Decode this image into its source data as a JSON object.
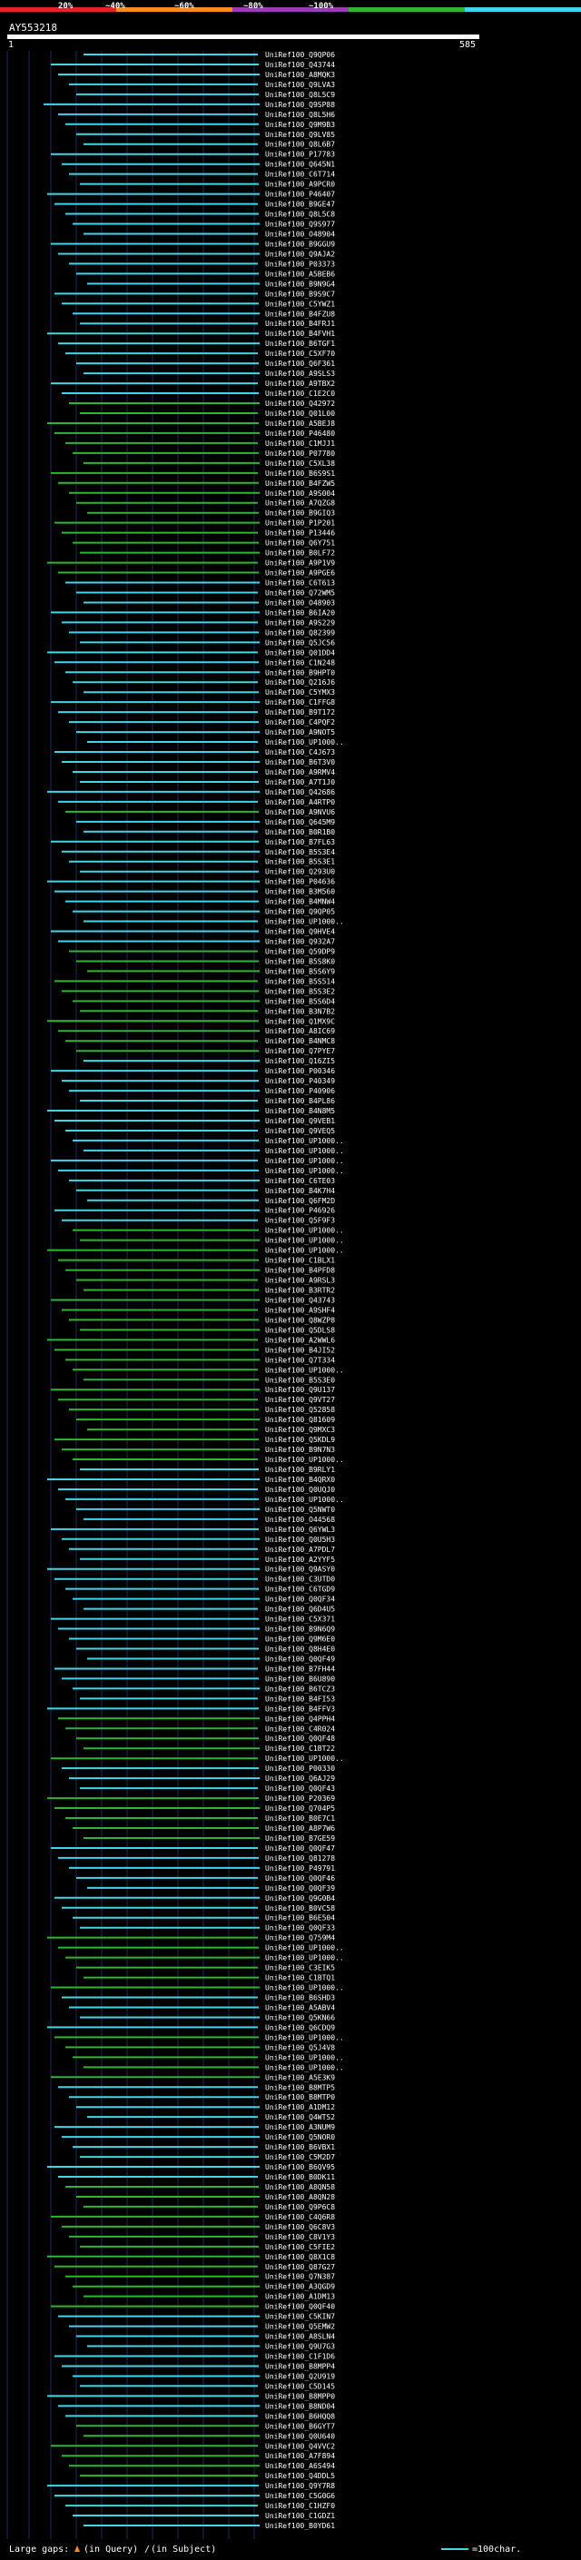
{
  "legend": {
    "labels": [
      "20%",
      "~40%",
      "~60%",
      "~80%",
      "~100%"
    ],
    "colors": [
      "#e8202a",
      "#ff8a1e",
      "#9b3db8",
      "#2fb52f",
      "#3fd6e8"
    ]
  },
  "query": {
    "id": "AY553218",
    "start_label": "1",
    "end_label": "585"
  },
  "footer": {
    "gaps_label": "Large gaps:",
    "query_gap_text": "(in Query)",
    "subject_gap_text": "(in Subject)",
    "scale_text": "=100char."
  },
  "colors": {
    "background": "#000000",
    "grid": "#1e2a55",
    "cyan": "#3fd6e8",
    "green": "#2fb52f",
    "text": "#ffffff"
  },
  "hits": [
    {
      "label": "UniRef100_Q9QP06",
      "tint": "cyan"
    },
    {
      "label": "UniRef100_Q43744",
      "tint": "cyan"
    },
    {
      "label": "UniRef100_A8MQK3",
      "tint": "cyan"
    },
    {
      "label": "UniRef100_Q9LVA3",
      "tint": "cyan"
    },
    {
      "label": "UniRef100_Q8L5C9",
      "tint": "cyan"
    },
    {
      "label": "UniRef100_Q9SP88",
      "tint": "cyan"
    },
    {
      "label": "UniRef100_Q8L5H6",
      "tint": "cyan"
    },
    {
      "label": "UniRef100_Q9M9B3",
      "tint": "cyan"
    },
    {
      "label": "UniRef100_Q9LV85",
      "tint": "cyan"
    },
    {
      "label": "UniRef100_Q8L6B7",
      "tint": "cyan"
    },
    {
      "label": "UniRef100_P17783",
      "tint": "cyan"
    },
    {
      "label": "UniRef100_Q645N1",
      "tint": "cyan"
    },
    {
      "label": "UniRef100_C6T714",
      "tint": "cyan"
    },
    {
      "label": "UniRef100_A9PCR0",
      "tint": "cyan"
    },
    {
      "label": "UniRef100_P46407",
      "tint": "cyan"
    },
    {
      "label": "UniRef100_B9GE47",
      "tint": "cyan"
    },
    {
      "label": "UniRef100_Q8L5C8",
      "tint": "cyan"
    },
    {
      "label": "UniRef100_Q9S977",
      "tint": "cyan"
    },
    {
      "label": "UniRef100_O48904",
      "tint": "cyan"
    },
    {
      "label": "UniRef100_B9GGU9",
      "tint": "cyan"
    },
    {
      "label": "UniRef100_Q9AJA2",
      "tint": "cyan"
    },
    {
      "label": "UniRef100_P03373",
      "tint": "cyan"
    },
    {
      "label": "UniRef100_A5BEB6",
      "tint": "cyan"
    },
    {
      "label": "UniRef100_B9N9G4",
      "tint": "cyan"
    },
    {
      "label": "UniRef100_B9S9C7",
      "tint": "cyan"
    },
    {
      "label": "UniRef100_C5YWZ1",
      "tint": "cyan"
    },
    {
      "label": "UniRef100_B4FZU8",
      "tint": "cyan"
    },
    {
      "label": "UniRef100_B4FRJ1",
      "tint": "cyan"
    },
    {
      "label": "UniRef100_B4FVH1",
      "tint": "cyan"
    },
    {
      "label": "UniRef100_B6TGF1",
      "tint": "cyan"
    },
    {
      "label": "UniRef100_C5XF70",
      "tint": "cyan"
    },
    {
      "label": "UniRef100_Q6F361",
      "tint": "cyan"
    },
    {
      "label": "UniRef100_A9SLS3",
      "tint": "cyan"
    },
    {
      "label": "UniRef100_A9TBX2",
      "tint": "cyan"
    },
    {
      "label": "UniRef100_C1E2C0",
      "tint": "cyan"
    },
    {
      "label": "UniRef100_Q42972",
      "tint": "green"
    },
    {
      "label": "UniRef100_Q01L00",
      "tint": "green"
    },
    {
      "label": "UniRef100_A5BEJ8",
      "tint": "green"
    },
    {
      "label": "UniRef100_P46480",
      "tint": "green"
    },
    {
      "label": "UniRef100_C1MJJ1",
      "tint": "green"
    },
    {
      "label": "UniRef100_P07780",
      "tint": "green"
    },
    {
      "label": "UniRef100_C5XL38",
      "tint": "green"
    },
    {
      "label": "UniRef100_B6S9S1",
      "tint": "green"
    },
    {
      "label": "UniRef100_B4FZW5",
      "tint": "green"
    },
    {
      "label": "UniRef100_A9S004",
      "tint": "green"
    },
    {
      "label": "UniRef100_A7QZG8",
      "tint": "green"
    },
    {
      "label": "UniRef100_B9GIQ3",
      "tint": "green"
    },
    {
      "label": "UniRef100_P1P201",
      "tint": "green"
    },
    {
      "label": "UniRef100_P13446",
      "tint": "green"
    },
    {
      "label": "UniRef100_Q6Y751",
      "tint": "green"
    },
    {
      "label": "UniRef100_B0LF72",
      "tint": "green"
    },
    {
      "label": "UniRef100_A9P1V9",
      "tint": "green"
    },
    {
      "label": "UniRef100_A9PGE6",
      "tint": "green"
    },
    {
      "label": "UniRef100_C6T613",
      "tint": "cyan"
    },
    {
      "label": "UniRef100_Q72WM5",
      "tint": "cyan"
    },
    {
      "label": "UniRef100_O48903",
      "tint": "cyan"
    },
    {
      "label": "UniRef100_B6IA20",
      "tint": "cyan"
    },
    {
      "label": "UniRef100_A9S229",
      "tint": "cyan"
    },
    {
      "label": "UniRef100_Q82399",
      "tint": "cyan"
    },
    {
      "label": "UniRef100_Q5JC56",
      "tint": "cyan"
    },
    {
      "label": "UniRef100_Q01DD4",
      "tint": "cyan"
    },
    {
      "label": "UniRef100_C1N248",
      "tint": "cyan"
    },
    {
      "label": "UniRef100_B9HPT0",
      "tint": "cyan"
    },
    {
      "label": "UniRef100_Q216J6",
      "tint": "cyan"
    },
    {
      "label": "UniRef100_C5YMX3",
      "tint": "cyan"
    },
    {
      "label": "UniRef100_C1FFG8",
      "tint": "cyan"
    },
    {
      "label": "UniRef100_B9T172",
      "tint": "cyan"
    },
    {
      "label": "UniRef100_C4PQF2",
      "tint": "cyan"
    },
    {
      "label": "UniRef100_A9NOT5",
      "tint": "cyan"
    },
    {
      "label": "UniRef100_UP1000..",
      "tint": "cyan"
    },
    {
      "label": "UniRef100_C4J673",
      "tint": "cyan"
    },
    {
      "label": "UniRef100_B6T3V0",
      "tint": "cyan"
    },
    {
      "label": "UniRef100_A9RMV4",
      "tint": "cyan"
    },
    {
      "label": "UniRef100_A7T1J0",
      "tint": "cyan"
    },
    {
      "label": "UniRef100_Q42686",
      "tint": "cyan"
    },
    {
      "label": "UniRef100_A4RTP0",
      "tint": "cyan"
    },
    {
      "label": "UniRef100_A9NVU6",
      "tint": "green"
    },
    {
      "label": "UniRef100_Q645M9",
      "tint": "cyan"
    },
    {
      "label": "UniRef100_B0R1B0",
      "tint": "cyan"
    },
    {
      "label": "UniRef100_B7FL63",
      "tint": "cyan"
    },
    {
      "label": "UniRef100_B5S3E4",
      "tint": "cyan"
    },
    {
      "label": "UniRef100_B5S3E1",
      "tint": "cyan"
    },
    {
      "label": "UniRef100_Q293U0",
      "tint": "cyan"
    },
    {
      "label": "UniRef100_P04636",
      "tint": "cyan"
    },
    {
      "label": "UniRef100_B3M560",
      "tint": "cyan"
    },
    {
      "label": "UniRef100_B4MNW4",
      "tint": "cyan"
    },
    {
      "label": "UniRef100_Q9QP05",
      "tint": "cyan"
    },
    {
      "label": "UniRef100_UP1000..",
      "tint": "cyan"
    },
    {
      "label": "UniRef100_Q9HVE4",
      "tint": "cyan"
    },
    {
      "label": "UniRef100_Q932A7",
      "tint": "cyan"
    },
    {
      "label": "UniRef100_Q59DP9",
      "tint": "green"
    },
    {
      "label": "UniRef100_B5S8K0",
      "tint": "green"
    },
    {
      "label": "UniRef100_B5S6Y9",
      "tint": "green"
    },
    {
      "label": "UniRef100_B5S514",
      "tint": "green"
    },
    {
      "label": "UniRef100_B5S3E2",
      "tint": "green"
    },
    {
      "label": "UniRef100_B5S6D4",
      "tint": "green"
    },
    {
      "label": "UniRef100_B3N7B2",
      "tint": "green"
    },
    {
      "label": "UniRef100_Q1MX9C",
      "tint": "green"
    },
    {
      "label": "UniRef100_A8IC69",
      "tint": "green"
    },
    {
      "label": "UniRef100_B4NMC8",
      "tint": "green"
    },
    {
      "label": "UniRef100_Q7PYE7",
      "tint": "green"
    },
    {
      "label": "UniRef100_Q16ZI5",
      "tint": "cyan"
    },
    {
      "label": "UniRef100_P00346",
      "tint": "cyan"
    },
    {
      "label": "UniRef100_P40349",
      "tint": "cyan"
    },
    {
      "label": "UniRef100_P40906",
      "tint": "cyan"
    },
    {
      "label": "UniRef100_B4PL86",
      "tint": "cyan"
    },
    {
      "label": "UniRef100_B4N8M5",
      "tint": "cyan"
    },
    {
      "label": "UniRef100_Q9VEB1",
      "tint": "cyan"
    },
    {
      "label": "UniRef100_Q9VEQ5",
      "tint": "cyan"
    },
    {
      "label": "UniRef100_UP1000..",
      "tint": "cyan"
    },
    {
      "label": "UniRef100_UP1000..",
      "tint": "cyan"
    },
    {
      "label": "UniRef100_UP1000..",
      "tint": "cyan"
    },
    {
      "label": "UniRef100_UP1000..",
      "tint": "cyan"
    },
    {
      "label": "UniRef100_C6TE03",
      "tint": "cyan"
    },
    {
      "label": "UniRef100_B4K7H4",
      "tint": "cyan"
    },
    {
      "label": "UniRef100_Q6FM2D",
      "tint": "cyan"
    },
    {
      "label": "UniRef100_P46926",
      "tint": "cyan"
    },
    {
      "label": "UniRef100_Q5F9F3",
      "tint": "cyan"
    },
    {
      "label": "UniRef100_UP1000..",
      "tint": "green"
    },
    {
      "label": "UniRef100_UP1000..",
      "tint": "green"
    },
    {
      "label": "UniRef100_UP1000..",
      "tint": "green"
    },
    {
      "label": "UniRef100_C1BLX1",
      "tint": "green"
    },
    {
      "label": "UniRef100_B4PFD8",
      "tint": "green"
    },
    {
      "label": "UniRef100_A9RSL3",
      "tint": "green"
    },
    {
      "label": "UniRef100_B3RTR2",
      "tint": "green"
    },
    {
      "label": "UniRef100_Q43743",
      "tint": "green"
    },
    {
      "label": "UniRef100_A9SHF4",
      "tint": "green"
    },
    {
      "label": "UniRef100_Q8WZP8",
      "tint": "green"
    },
    {
      "label": "UniRef100_Q5DLS8",
      "tint": "green"
    },
    {
      "label": "UniRef100_A2WWL6",
      "tint": "green"
    },
    {
      "label": "UniRef100_B4JI52",
      "tint": "green"
    },
    {
      "label": "UniRef100_Q7T334",
      "tint": "green"
    },
    {
      "label": "UniRef100_UP1000..",
      "tint": "green"
    },
    {
      "label": "UniRef100_B5S3E0",
      "tint": "green"
    },
    {
      "label": "UniRef100_Q9U137",
      "tint": "green"
    },
    {
      "label": "UniRef100_Q9VT27",
      "tint": "green"
    },
    {
      "label": "UniRef100_Q52858",
      "tint": "green"
    },
    {
      "label": "UniRef100_Q81609",
      "tint": "green"
    },
    {
      "label": "UniRef100_Q9MXC3",
      "tint": "green"
    },
    {
      "label": "UniRef100_Q5KDL9",
      "tint": "green"
    },
    {
      "label": "UniRef100_B9N7N3",
      "tint": "green"
    },
    {
      "label": "UniRef100_UP1000..",
      "tint": "green"
    },
    {
      "label": "UniRef100_B9RLY1",
      "tint": "cyan"
    },
    {
      "label": "UniRef100_B4QRX0",
      "tint": "cyan"
    },
    {
      "label": "UniRef100_Q0UQJ0",
      "tint": "cyan"
    },
    {
      "label": "UniRef100_UP1000..",
      "tint": "cyan"
    },
    {
      "label": "UniRef100_Q5NWT0",
      "tint": "cyan"
    },
    {
      "label": "UniRef100_O44568",
      "tint": "cyan"
    },
    {
      "label": "UniRef100_Q6YWL3",
      "tint": "cyan"
    },
    {
      "label": "UniRef100_Q0U5H3",
      "tint": "cyan"
    },
    {
      "label": "UniRef100_A7PDL7",
      "tint": "cyan"
    },
    {
      "label": "UniRef100_A2YYF5",
      "tint": "cyan"
    },
    {
      "label": "UniRef100_Q9ASY0",
      "tint": "cyan"
    },
    {
      "label": "UniRef100_C3UTD0",
      "tint": "cyan"
    },
    {
      "label": "UniRef100_C6TGD9",
      "tint": "cyan"
    },
    {
      "label": "UniRef100_Q0QF34",
      "tint": "cyan"
    },
    {
      "label": "UniRef100_Q6D4U5",
      "tint": "cyan"
    },
    {
      "label": "UniRef100_C5X371",
      "tint": "cyan"
    },
    {
      "label": "UniRef100_B9N6Q9",
      "tint": "cyan"
    },
    {
      "label": "UniRef100_Q9M6E0",
      "tint": "cyan"
    },
    {
      "label": "UniRef100_Q8H4E0",
      "tint": "cyan"
    },
    {
      "label": "UniRef100_Q0QF49",
      "tint": "cyan"
    },
    {
      "label": "UniRef100_B7FH44",
      "tint": "cyan"
    },
    {
      "label": "UniRef100_B6U890",
      "tint": "cyan"
    },
    {
      "label": "UniRef100_B6TCZ3",
      "tint": "cyan"
    },
    {
      "label": "UniRef100_B4FI53",
      "tint": "cyan"
    },
    {
      "label": "UniRef100_B4FFV3",
      "tint": "cyan"
    },
    {
      "label": "UniRef100_Q4PPH4",
      "tint": "green"
    },
    {
      "label": "UniRef100_C4R024",
      "tint": "green"
    },
    {
      "label": "UniRef100_Q0QF48",
      "tint": "green"
    },
    {
      "label": "UniRef100_C1BT22",
      "tint": "green"
    },
    {
      "label": "UniRef100_UP1000..",
      "tint": "green"
    },
    {
      "label": "UniRef100_P00330",
      "tint": "cyan"
    },
    {
      "label": "UniRef100_Q6AJ29",
      "tint": "cyan"
    },
    {
      "label": "UniRef100_Q0QF43",
      "tint": "cyan"
    },
    {
      "label": "UniRef100_P20369",
      "tint": "green"
    },
    {
      "label": "UniRef100_Q704P5",
      "tint": "green"
    },
    {
      "label": "UniRef100_B0E7C1",
      "tint": "green"
    },
    {
      "label": "UniRef100_A8P7W6",
      "tint": "green"
    },
    {
      "label": "UniRef100_B7GE59",
      "tint": "green"
    },
    {
      "label": "UniRef100_Q0QF47",
      "tint": "cyan"
    },
    {
      "label": "UniRef100_Q81278",
      "tint": "cyan"
    },
    {
      "label": "UniRef100_P49791",
      "tint": "cyan"
    },
    {
      "label": "UniRef100_Q0QF46",
      "tint": "cyan"
    },
    {
      "label": "UniRef100_Q0QF39",
      "tint": "cyan"
    },
    {
      "label": "UniRef100_Q9G0B4",
      "tint": "cyan"
    },
    {
      "label": "UniRef100_B0VC58",
      "tint": "cyan"
    },
    {
      "label": "UniRef100_B6E504",
      "tint": "cyan"
    },
    {
      "label": "UniRef100_Q0QF33",
      "tint": "cyan"
    },
    {
      "label": "UniRef100_Q759M4",
      "tint": "green"
    },
    {
      "label": "UniRef100_UP1000..",
      "tint": "green"
    },
    {
      "label": "UniRef100_UP1000..",
      "tint": "green"
    },
    {
      "label": "UniRef100_C3EIK5",
      "tint": "green"
    },
    {
      "label": "UniRef100_C1BTQ1",
      "tint": "green"
    },
    {
      "label": "UniRef100_UP1000..",
      "tint": "green"
    },
    {
      "label": "UniRef100_B6SHD3",
      "tint": "cyan"
    },
    {
      "label": "UniRef100_A5ABV4",
      "tint": "cyan"
    },
    {
      "label": "UniRef100_Q5KN66",
      "tint": "cyan"
    },
    {
      "label": "UniRef100_Q6CDQ9",
      "tint": "cyan"
    },
    {
      "label": "UniRef100_UP1000..",
      "tint": "green"
    },
    {
      "label": "UniRef100_Q5J4V8",
      "tint": "green"
    },
    {
      "label": "UniRef100_UP1000..",
      "tint": "green"
    },
    {
      "label": "UniRef100_UP1000..",
      "tint": "green"
    },
    {
      "label": "UniRef100_A5E3K9",
      "tint": "green"
    },
    {
      "label": "UniRef100_B8MTP5",
      "tint": "cyan"
    },
    {
      "label": "UniRef100_B8MTP0",
      "tint": "cyan"
    },
    {
      "label": "UniRef100_A1DM12",
      "tint": "cyan"
    },
    {
      "label": "UniRef100_Q4WTS2",
      "tint": "cyan"
    },
    {
      "label": "UniRef100_A3NUM9",
      "tint": "cyan"
    },
    {
      "label": "UniRef100_Q5NOR0",
      "tint": "cyan"
    },
    {
      "label": "UniRef100_B6VBX1",
      "tint": "cyan"
    },
    {
      "label": "UniRef100_C5M2D7",
      "tint": "cyan"
    },
    {
      "label": "UniRef100_B6QV95",
      "tint": "cyan"
    },
    {
      "label": "UniRef100_B0DK11",
      "tint": "cyan"
    },
    {
      "label": "UniRef100_A8QN58",
      "tint": "green"
    },
    {
      "label": "UniRef100_A8QN28",
      "tint": "green"
    },
    {
      "label": "UniRef100_Q9P6C8",
      "tint": "green"
    },
    {
      "label": "UniRef100_C4Q6R8",
      "tint": "green"
    },
    {
      "label": "UniRef100_Q6C8V3",
      "tint": "green"
    },
    {
      "label": "UniRef100_C8V1Y3",
      "tint": "green"
    },
    {
      "label": "UniRef100_C5FIE2",
      "tint": "green"
    },
    {
      "label": "UniRef100_Q8X1C8",
      "tint": "green"
    },
    {
      "label": "UniRef100_Q87G27",
      "tint": "green"
    },
    {
      "label": "UniRef100_Q7N387",
      "tint": "green"
    },
    {
      "label": "UniRef100_A3QGD9",
      "tint": "green"
    },
    {
      "label": "UniRef100_A1DM13",
      "tint": "green"
    },
    {
      "label": "UniRef100_Q0QF40",
      "tint": "green"
    },
    {
      "label": "UniRef100_C5KIN7",
      "tint": "cyan"
    },
    {
      "label": "UniRef100_Q5EMW2",
      "tint": "cyan"
    },
    {
      "label": "UniRef100_A8SLN4",
      "tint": "cyan"
    },
    {
      "label": "UniRef100_Q9U7G3",
      "tint": "cyan"
    },
    {
      "label": "UniRef100_C1F1D6",
      "tint": "cyan"
    },
    {
      "label": "UniRef100_B8MPP4",
      "tint": "cyan"
    },
    {
      "label": "UniRef100_Q2U919",
      "tint": "cyan"
    },
    {
      "label": "UniRef100_C5D145",
      "tint": "cyan"
    },
    {
      "label": "UniRef100_B8MPP0",
      "tint": "cyan"
    },
    {
      "label": "UniRef100_B8ND04",
      "tint": "cyan"
    },
    {
      "label": "UniRef100_B6HQQ8",
      "tint": "cyan"
    },
    {
      "label": "UniRef100_B6GYT7",
      "tint": "green"
    },
    {
      "label": "UniRef100_Q0U640",
      "tint": "green"
    },
    {
      "label": "UniRef100_Q4VVC2",
      "tint": "green"
    },
    {
      "label": "UniRef100_A7F894",
      "tint": "green"
    },
    {
      "label": "UniRef100_A6S494",
      "tint": "green"
    },
    {
      "label": "UniRef100_Q4DDL5",
      "tint": "green"
    },
    {
      "label": "UniRef100_Q9Y7R8",
      "tint": "cyan"
    },
    {
      "label": "UniRef100_C5G0G6",
      "tint": "cyan"
    },
    {
      "label": "UniRef100_C1HZF0",
      "tint": "cyan"
    },
    {
      "label": "UniRef100_C1GDZ1",
      "tint": "cyan"
    },
    {
      "label": "UniRef100_B0YD61",
      "tint": "cyan"
    }
  ]
}
